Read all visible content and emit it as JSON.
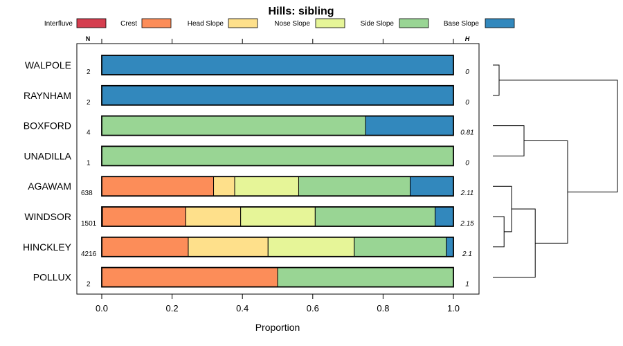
{
  "chart_data": {
    "type": "bar",
    "subtype": "stacked-horizontal-proportion",
    "title": "Hills: sibling",
    "xlabel": "Proportion",
    "ylabel": "",
    "xlim": [
      0,
      1
    ],
    "x_ticks": [
      "0.0",
      "0.2",
      "0.4",
      "0.6",
      "0.8",
      "1.0"
    ],
    "x_tick_values": [
      0,
      0.2,
      0.4,
      0.6,
      0.8,
      1.0
    ],
    "n_header": "N",
    "h_header": "H",
    "legend_position": "top",
    "series": [
      {
        "name": "Interfluve",
        "color": "#d53e4f"
      },
      {
        "name": "Crest",
        "color": "#fc8d59"
      },
      {
        "name": "Head Slope",
        "color": "#fee08b"
      },
      {
        "name": "Nose Slope",
        "color": "#e6f598"
      },
      {
        "name": "Side Slope",
        "color": "#99d594"
      },
      {
        "name": "Base Slope",
        "color": "#3288bd"
      }
    ],
    "rows": [
      {
        "name": "WALPOLE",
        "n": "2",
        "h": "0",
        "values": [
          0,
          0,
          0,
          0,
          0,
          1.0
        ]
      },
      {
        "name": "RAYNHAM",
        "n": "2",
        "h": "0",
        "values": [
          0,
          0,
          0,
          0,
          0,
          1.0
        ]
      },
      {
        "name": "BOXFORD",
        "n": "4",
        "h": "0.81",
        "values": [
          0,
          0,
          0,
          0,
          0.75,
          0.25
        ]
      },
      {
        "name": "UNADILLA",
        "n": "1",
        "h": "0",
        "values": [
          0,
          0,
          0,
          0,
          1.0,
          0
        ]
      },
      {
        "name": "AGAWAM",
        "n": "638",
        "h": "2.11",
        "values": [
          0,
          0.318,
          0.06,
          0.182,
          0.317,
          0.123
        ]
      },
      {
        "name": "WINDSOR",
        "n": "1501",
        "h": "2.15",
        "values": [
          0.002,
          0.237,
          0.156,
          0.212,
          0.341,
          0.052
        ]
      },
      {
        "name": "HINCKLEY",
        "n": "4216",
        "h": "2.1",
        "values": [
          0.001,
          0.245,
          0.227,
          0.245,
          0.262,
          0.02
        ]
      },
      {
        "name": "POLLUX",
        "n": "2",
        "h": "1",
        "values": [
          0,
          0.5,
          0,
          0,
          0.5,
          0
        ]
      }
    ],
    "dendrogram_merges": [
      {
        "left": "WALPOLE",
        "right": "RAYNHAM",
        "height": 0.05
      },
      {
        "left": "BOXFORD",
        "right": "UNADILLA",
        "height": 0.25
      },
      {
        "left": "WINDSOR",
        "right": "HINCKLEY",
        "height": 0.09
      },
      {
        "left": "AGAWAM",
        "right": "WINDSOR+HINCKLEY",
        "height": 0.15
      },
      {
        "left": "AGAWAM+WINDSOR+HINCKLEY",
        "right": "POLLUX",
        "height": 0.34
      },
      {
        "left": "BOXFORD+UNADILLA",
        "right": "AGAWAM+WINDSOR+HINCKLEY+POLLUX",
        "height": 0.6
      },
      {
        "left": "WALPOLE+RAYNHAM",
        "right": "BOXFORD+UNADILLA+AGAWAM+WINDSOR+HINCKLEY+POLLUX",
        "height": 1.0
      }
    ]
  }
}
